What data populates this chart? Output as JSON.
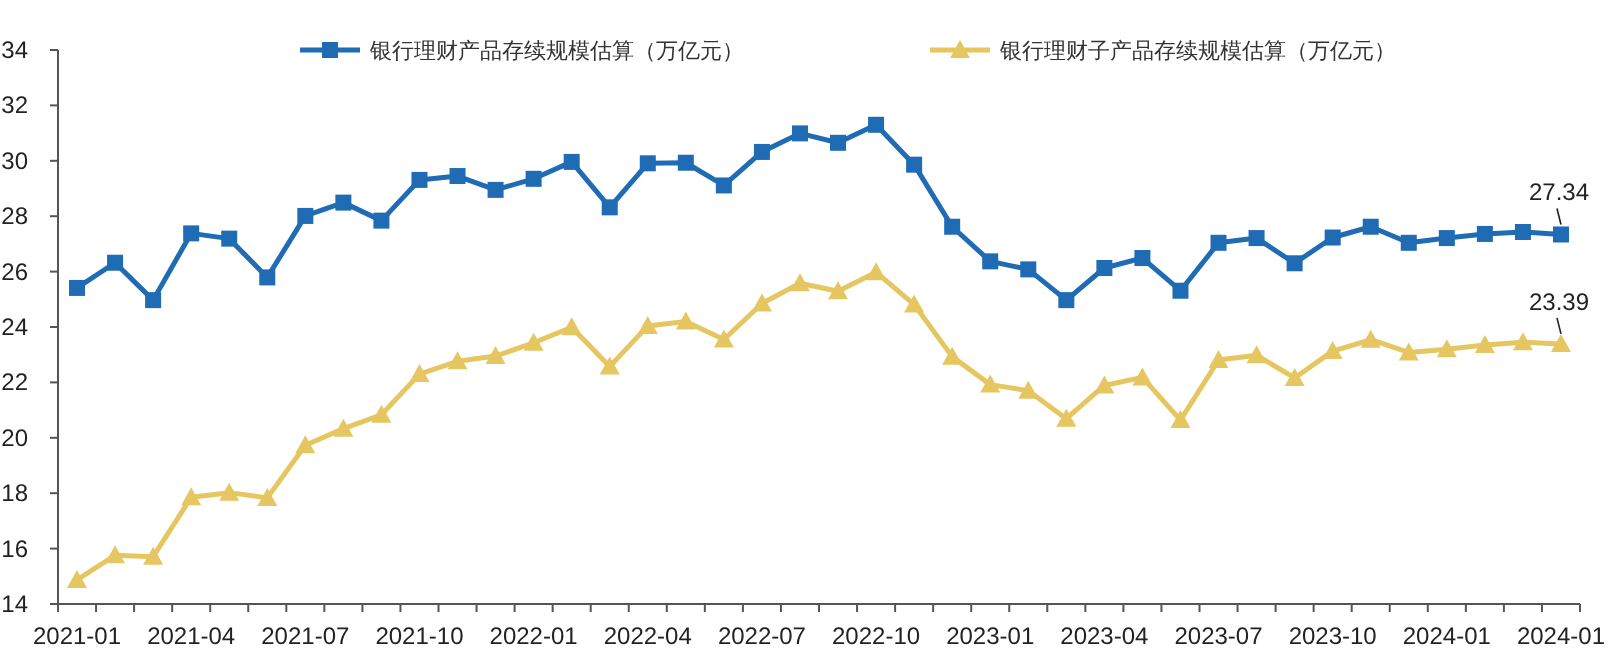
{
  "chart_data": {
    "type": "line",
    "categories": [
      "2021-01",
      null,
      null,
      "2021-04",
      null,
      null,
      "2021-07",
      null,
      null,
      "2021-10",
      null,
      null,
      "2022-01",
      null,
      null,
      "2022-04",
      null,
      null,
      "2022-07",
      null,
      null,
      "2022-10",
      null,
      null,
      "2023-01",
      null,
      null,
      "2023-04",
      null,
      null,
      "2023-07",
      null,
      null,
      "2023-10",
      null,
      null,
      "2024-01",
      null,
      null,
      "2024-01"
    ],
    "series": [
      {
        "name": "银行理财产品存续规模估算（万亿元）",
        "color": "#1f6cb4",
        "marker": "square",
        "values": [
          25.41,
          26.32,
          24.97,
          27.38,
          27.19,
          25.79,
          28.01,
          28.49,
          27.84,
          29.31,
          29.45,
          28.95,
          29.35,
          29.96,
          28.32,
          29.91,
          29.93,
          29.11,
          30.32,
          30.99,
          30.65,
          31.3,
          29.86,
          27.62,
          26.37,
          26.08,
          24.97,
          26.13,
          26.49,
          25.31,
          27.04,
          27.21,
          26.3,
          27.23,
          27.62,
          27.04,
          27.21,
          27.36,
          27.43,
          27.34
        ],
        "value_labels": [
          null,
          null,
          null,
          null,
          null,
          null,
          null,
          null,
          null,
          null,
          null,
          null,
          null,
          null,
          null,
          null,
          null,
          null,
          null,
          null,
          null,
          null,
          null,
          null,
          null,
          null,
          null,
          null,
          null,
          null,
          null,
          null,
          null,
          null,
          null,
          null,
          null,
          null,
          null,
          "27.34"
        ]
      },
      {
        "name": "银行理财子产品存续规模估算（万亿元）",
        "color": "#e6c661",
        "marker": "triangle",
        "values": [
          14.87,
          15.76,
          15.71,
          17.85,
          18.02,
          17.83,
          19.73,
          20.33,
          20.83,
          22.3,
          22.76,
          22.95,
          23.43,
          23.99,
          22.57,
          24.04,
          24.2,
          23.55,
          24.85,
          25.58,
          25.29,
          25.98,
          24.81,
          22.93,
          21.92,
          21.7,
          20.69,
          21.89,
          22.18,
          20.64,
          22.81,
          22.98,
          22.16,
          23.13,
          23.54,
          23.08,
          23.2,
          23.35,
          23.45,
          23.39
        ],
        "value_labels": [
          null,
          null,
          null,
          null,
          null,
          null,
          null,
          null,
          null,
          null,
          null,
          null,
          null,
          null,
          null,
          null,
          null,
          null,
          null,
          null,
          null,
          null,
          null,
          null,
          null,
          null,
          null,
          null,
          null,
          null,
          null,
          null,
          null,
          null,
          null,
          null,
          null,
          null,
          null,
          "23.39"
        ]
      }
    ],
    "ylim": [
      14,
      34
    ],
    "yticks": [
      14,
      16,
      18,
      20,
      22,
      24,
      26,
      28,
      30,
      32,
      34
    ],
    "grid": false,
    "legend": "top",
    "line_style": "solid"
  }
}
